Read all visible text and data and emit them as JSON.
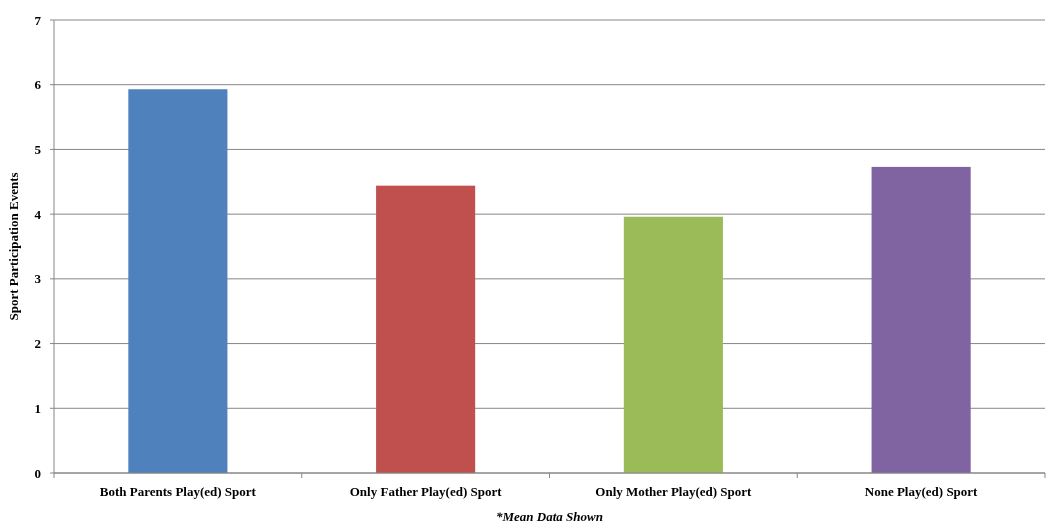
{
  "chart_data": {
    "type": "bar",
    "ylabel": "Sport Participation Events",
    "categories": [
      "Both Parents Play(ed) Sport",
      "Only Father Play(ed) Sport",
      "Only Mother Play(ed) Sport",
      "None Play(ed) Sport"
    ],
    "values": [
      5.93,
      4.44,
      3.96,
      4.73
    ],
    "colors": [
      "#4f81bd",
      "#c0504d",
      "#9bbb59",
      "#8064a2"
    ],
    "ylim": [
      0,
      7
    ],
    "yticks": [
      0,
      1,
      2,
      3,
      4,
      5,
      6,
      7
    ],
    "grid": "y",
    "annotations": [
      "*Mean Data Shown"
    ]
  }
}
